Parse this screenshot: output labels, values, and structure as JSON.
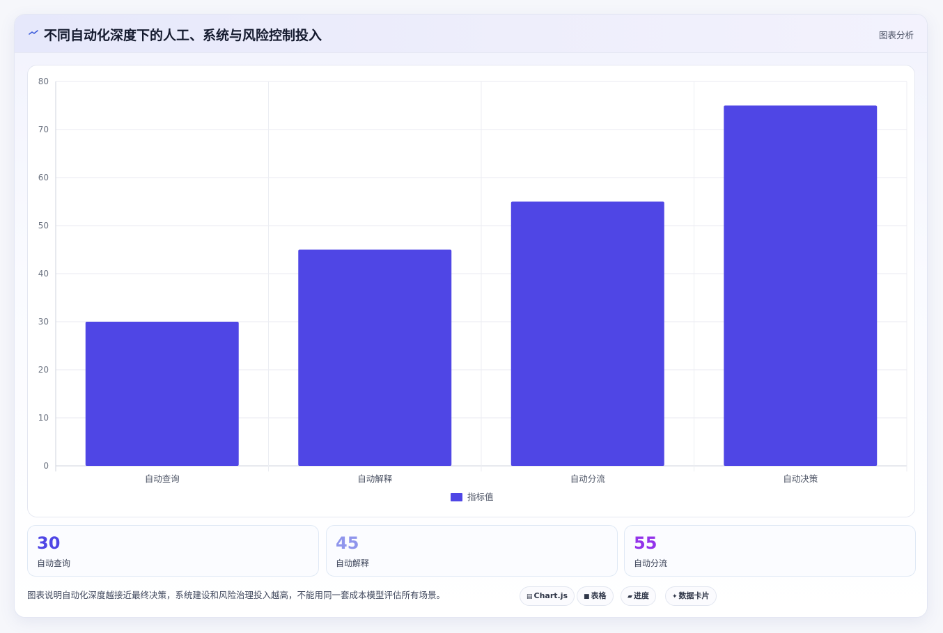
{
  "header": {
    "title": "不同自动化深度下的人工、系统与风险控制投入",
    "tag": "图表分析",
    "icon": "trend-line-icon"
  },
  "chart_data": {
    "type": "bar",
    "categories": [
      "自动查询",
      "自动解释",
      "自动分流",
      "自动决策"
    ],
    "series": [
      {
        "name": "指标值",
        "values": [
          30,
          45,
          55,
          75
        ],
        "color": "#4f46e5"
      }
    ],
    "yticks": [
      0,
      10,
      20,
      30,
      40,
      50,
      60,
      70,
      80
    ],
    "ylim": [
      0,
      80
    ],
    "grid": true,
    "legend_position": "bottom"
  },
  "stats": [
    {
      "value": "30",
      "label": "自动查询",
      "color": "#4f46e5"
    },
    {
      "value": "45",
      "label": "自动解释",
      "color": "#8f95ec"
    },
    {
      "value": "55",
      "label": "自动分流",
      "color": "#9333ea"
    }
  ],
  "footnote": "图表说明自动化深度越接近最终决策，系统建设和风险治理投入越高，不能用同一套成本模型评估所有场景。",
  "pills": [
    {
      "icon": "▤",
      "label": "Chart.js",
      "icon_name": "chart-icon"
    },
    {
      "icon": "■",
      "label": "表格",
      "icon_name": "table-icon"
    },
    {
      "icon": "▰",
      "label": "进度",
      "icon_name": "progress-icon"
    },
    {
      "icon": "✦",
      "label": "数据卡片",
      "icon_name": "sparkle-icon"
    }
  ]
}
